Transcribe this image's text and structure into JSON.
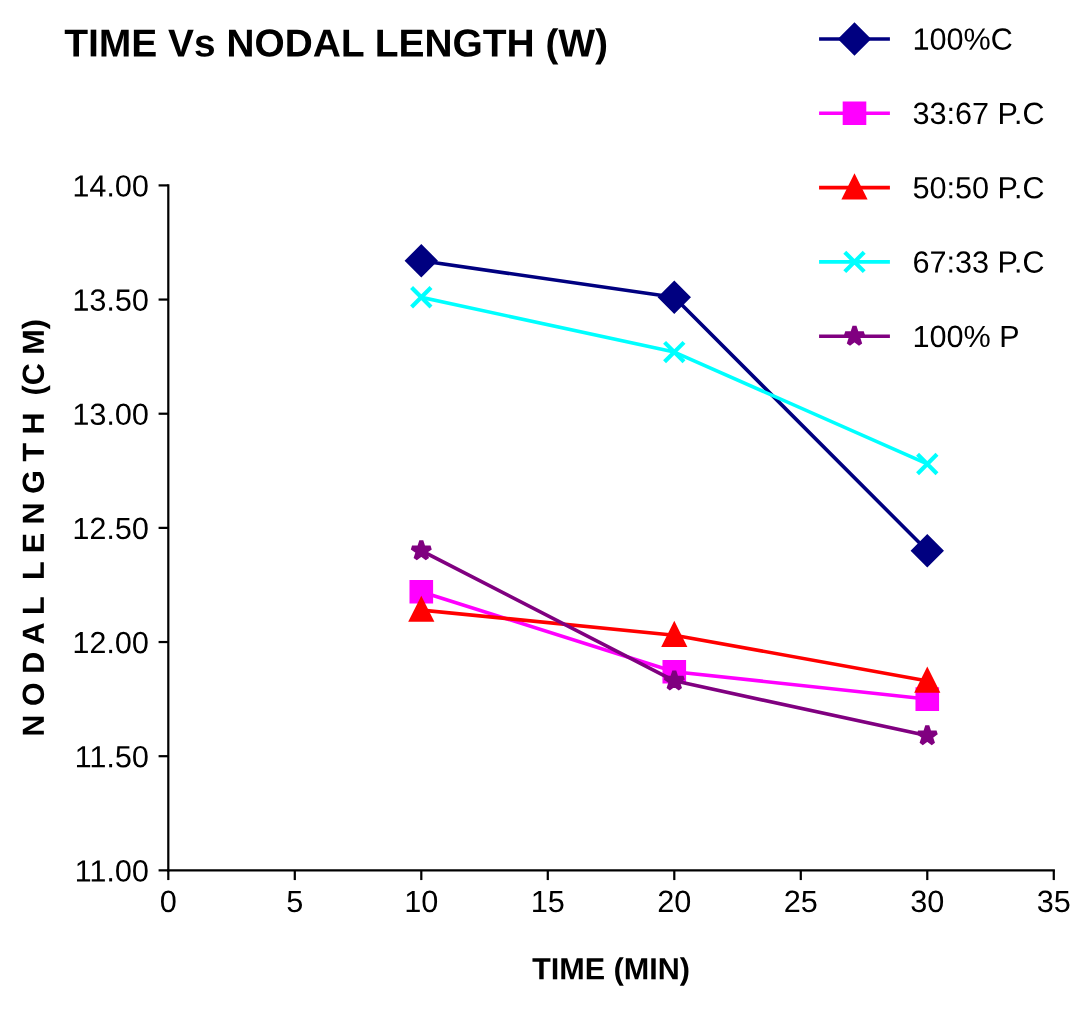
{
  "chart_data": {
    "type": "line",
    "title": "TIME Vs NODAL LENGTH (W)",
    "xlabel": "TIME (MIN)",
    "ylabel": "N O D A L  L E N G T H  (C M)",
    "x": [
      10,
      20,
      30
    ],
    "series": [
      {
        "name": "100%C",
        "color": "#000080",
        "marker": "diamond",
        "values": [
          13.67,
          13.51,
          12.4
        ]
      },
      {
        "name": "33:67 P.C",
        "color": "#ff00ff",
        "marker": "square",
        "values": [
          12.22,
          11.87,
          11.75
        ]
      },
      {
        "name": "50:50 P.C",
        "color": "#ff0000",
        "marker": "triangle",
        "values": [
          12.14,
          12.03,
          11.83
        ]
      },
      {
        "name": "67:33 P.C",
        "color": "#00ffff",
        "marker": "cross",
        "values": [
          13.51,
          13.27,
          12.78
        ]
      },
      {
        "name": "100% P",
        "color": "#800080",
        "marker": "star",
        "values": [
          12.4,
          11.83,
          11.59
        ]
      }
    ],
    "xlim": [
      0,
      35
    ],
    "xticks": [
      0,
      5,
      10,
      15,
      20,
      25,
      30,
      35
    ],
    "ylim": [
      11,
      14
    ],
    "yticks": [
      {
        "value": 11,
        "label": "11.00"
      },
      {
        "value": 11.5,
        "label": "11.50"
      },
      {
        "value": 12,
        "label": "12.00"
      },
      {
        "value": 12.5,
        "label": "12.50"
      },
      {
        "value": 13,
        "label": "13.00"
      },
      {
        "value": 13.5,
        "label": "13.50"
      },
      {
        "value": 14,
        "label": "14.00"
      }
    ],
    "grid": false,
    "legend": "top right",
    "line_style": "solid"
  }
}
